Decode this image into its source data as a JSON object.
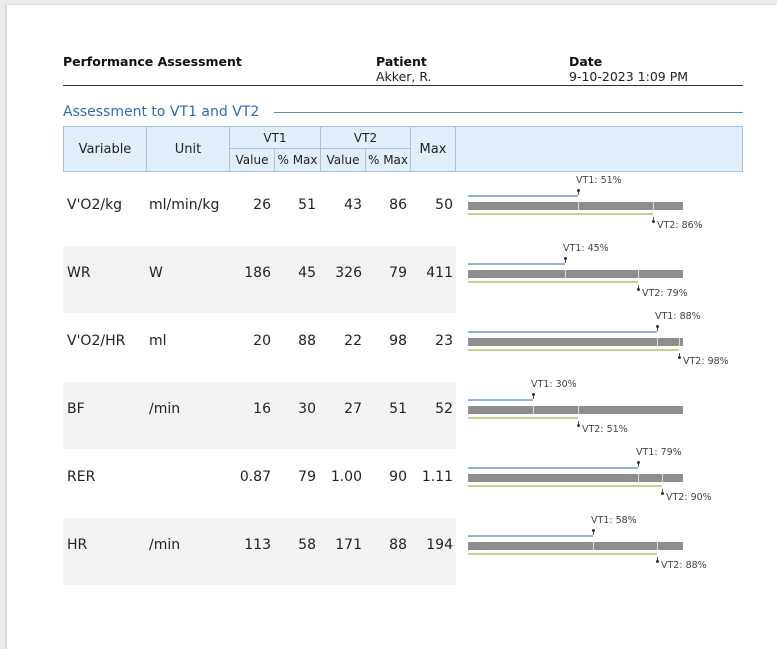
{
  "header": {
    "title": "Performance Assessment",
    "patient_label": "Patient",
    "patient_name": "Akker, R.",
    "date_label": "Date",
    "date_value": "9-10-2023 1:09 PM"
  },
  "section_title": "Assessment to VT1 and VT2",
  "table_headers": {
    "variable": "Variable",
    "unit": "Unit",
    "vt1": "VT1",
    "vt2": "VT2",
    "value": "Value",
    "pct_max": "% Max",
    "max": "Max"
  },
  "rows": [
    {
      "variable": "V'O2/kg",
      "unit": "ml/min/kg",
      "vt1_value": "26",
      "vt1_pct": "51",
      "vt2_value": "43",
      "vt2_pct": "86",
      "max": "50",
      "vt1_label": "VT1: 51%",
      "vt2_label": "VT2: 86%"
    },
    {
      "variable": "WR",
      "unit": "W",
      "vt1_value": "186",
      "vt1_pct": "45",
      "vt2_value": "326",
      "vt2_pct": "79",
      "max": "411",
      "vt1_label": "VT1: 45%",
      "vt2_label": "VT2: 79%"
    },
    {
      "variable": "V'O2/HR",
      "unit": "ml",
      "vt1_value": "20",
      "vt1_pct": "88",
      "vt2_value": "22",
      "vt2_pct": "98",
      "max": "23",
      "vt1_label": "VT1: 88%",
      "vt2_label": "VT2: 98%"
    },
    {
      "variable": "BF",
      "unit": "/min",
      "vt1_value": "16",
      "vt1_pct": "30",
      "vt2_value": "27",
      "vt2_pct": "51",
      "max": "52",
      "vt1_label": "VT1: 30%",
      "vt2_label": "VT2: 51%"
    },
    {
      "variable": "RER",
      "unit": "",
      "vt1_value": "0.87",
      "vt1_pct": "79",
      "vt2_value": "1.00",
      "vt2_pct": "90",
      "max": "1.11",
      "vt1_label": "VT1: 79%",
      "vt2_label": "VT2: 90%"
    },
    {
      "variable": "HR",
      "unit": "/min",
      "vt1_value": "113",
      "vt1_pct": "58",
      "vt2_value": "171",
      "vt2_pct": "88",
      "max": "194",
      "vt1_label": "VT1: 58%",
      "vt2_label": "VT2: 88%"
    }
  ],
  "colors": {
    "accent_blue": "#2f6db0",
    "header_fill": "#e2eefa",
    "vt1_line": "#8fb2e0",
    "vt2_line": "#bcd48d",
    "max_bar": "#8e8e8e"
  }
}
